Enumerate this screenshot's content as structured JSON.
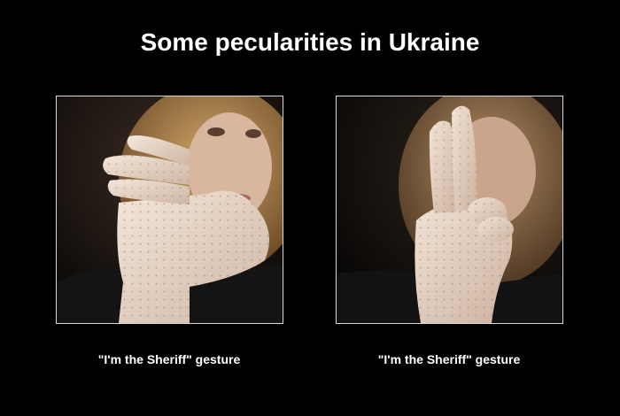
{
  "title": "Some pecularities in Ukraine",
  "panels": [
    {
      "caption": "\"I'm the Sheriff\" gesture",
      "photo": "woman-in-lace-glove-holding-hand-sideways"
    },
    {
      "caption": "\"I'm the Sheriff\" gesture",
      "photo": "woman-in-lace-glove-showing-two-fingers-up"
    }
  ],
  "colors": {
    "background": "#000000",
    "text": "#ffffff",
    "frame": "#d9d9d9",
    "glove": "#e8d6c8",
    "hair": "#b98d55"
  }
}
